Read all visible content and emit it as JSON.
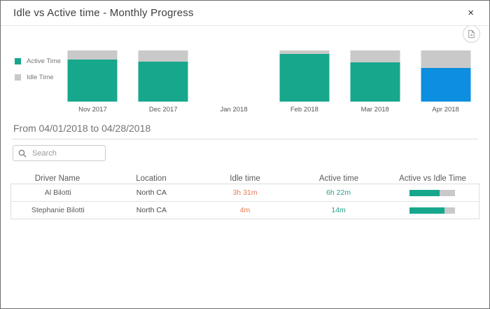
{
  "dialog": {
    "title": "Idle vs Active time - Monthly Progress",
    "close_label": "×"
  },
  "chart_data": {
    "type": "bar",
    "subtype": "stacked-100-percent",
    "categories": [
      "Nov 2017",
      "Dec 2017",
      "Jan 2018",
      "Feb 2018",
      "Mar 2018",
      "Apr 2018"
    ],
    "series": [
      {
        "name": "Active Time",
        "values": [
          82,
          78,
          null,
          93,
          77,
          66
        ]
      },
      {
        "name": "Idle Time",
        "values": [
          18,
          22,
          null,
          7,
          23,
          34
        ]
      }
    ],
    "selected_category": "Apr 2018",
    "legend_position": "left",
    "ylim": [
      0,
      100
    ],
    "grid": false
  },
  "colors": {
    "active": "#17a78c",
    "idle": "#c9c9c9",
    "selected_active": "#0d8ee0",
    "idle_text": "#e8784f",
    "active_text": "#27a08a"
  },
  "filters": {
    "date_range": "From 04/01/2018 to 04/28/2018",
    "search_placeholder": "Search"
  },
  "table": {
    "columns": [
      "Driver Name",
      "Location",
      "Idle time",
      "Active time",
      "Active vs Idle Time"
    ],
    "rows": [
      {
        "driver": "Al Bilotti",
        "location": "North CA",
        "idle": "3h 31m",
        "active": "6h 22m",
        "active_pct": 66
      },
      {
        "driver": "Stephanie Bilotti",
        "location": "North CA",
        "idle": "4m",
        "active": "14m",
        "active_pct": 78
      }
    ]
  }
}
